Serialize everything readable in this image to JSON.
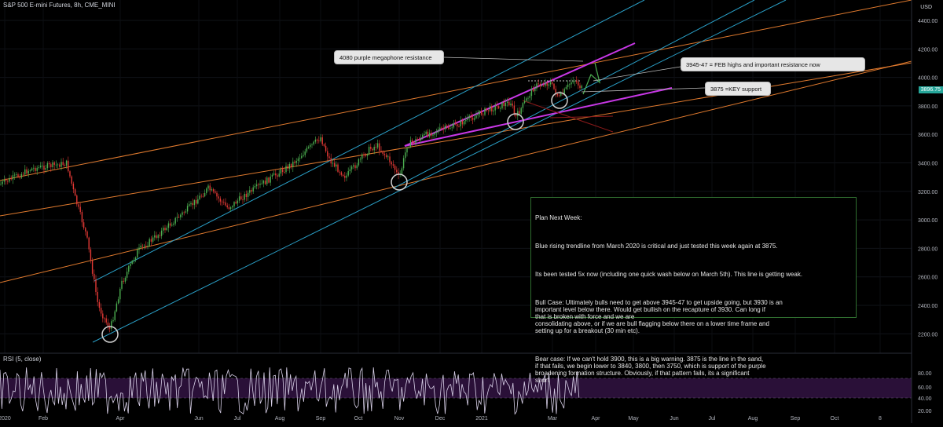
{
  "title": "S&P 500 E-mini Futures, 8h, CME_MINI",
  "currency_label": "USD",
  "price_axis": [
    "4400.00",
    "4200.00",
    "4000.00",
    "3800.00",
    "3600.00",
    "3400.00",
    "3200.00",
    "3000.00",
    "2800.00",
    "2600.00",
    "2400.00",
    "2200.00"
  ],
  "current_price": "3896.75",
  "rsi_label": "RSI (5, close)",
  "rsi_axis": [
    "80.00",
    "60.00",
    "40.00",
    "20.00"
  ],
  "time_axis": [
    "2020",
    "Feb",
    "Apr",
    "Jun",
    "Jul",
    "Aug",
    "Sep",
    "Oct",
    "Nov",
    "Dec",
    "2021",
    "Mar",
    "Apr",
    "May",
    "Jun",
    "Jul",
    "Aug",
    "Sep",
    "Oct",
    "8"
  ],
  "callouts": {
    "megaphone": "4080 purple megaphone resistance",
    "feb_highs": "3945-47 = FEB highs and important resistance now",
    "key_support": "3875 =KEY support"
  },
  "notes": {
    "heading": "Plan Next Week:",
    "p1": "Blue rising trendline from March 2020 is critical and just tested this week again at 3875.",
    "p2": "Its been tested 5x now (including one quick wash below on March 5th). This line is getting weak.",
    "p3": "Bull Case: Ultimately bulls need to get above 3945-47 to get upside going, but 3930 is an\nimportant level below there. Would get bullish on the recapture of 3930. Can long if\nthat is broken with force and we are\nconsolidating above, or if we are bull flagging below there on a lower time frame and\nsetting up for a breakout (30 min etc).",
    "p4": "Bear case: If we can't hold 3900, this is a big warning. 3875 is the line in the sand,\nif that fails, we begin lower to 3840, 3800, then 3750, which is support of the purple\nbroadening formation structure. Obviously, if that pattern fails, its a significant\nshort"
  },
  "colors": {
    "background": "#000000",
    "up_candle": "#4caf50",
    "down_candle": "#e53935",
    "orange_channel": "#e07a2e",
    "blue_trend": "#2aa0c8",
    "purple_megaphone": "#c837e6",
    "rsi_line": "#d8d0e8",
    "rsi_band": "#2a1038",
    "price_tag": "#26a69a"
  }
}
